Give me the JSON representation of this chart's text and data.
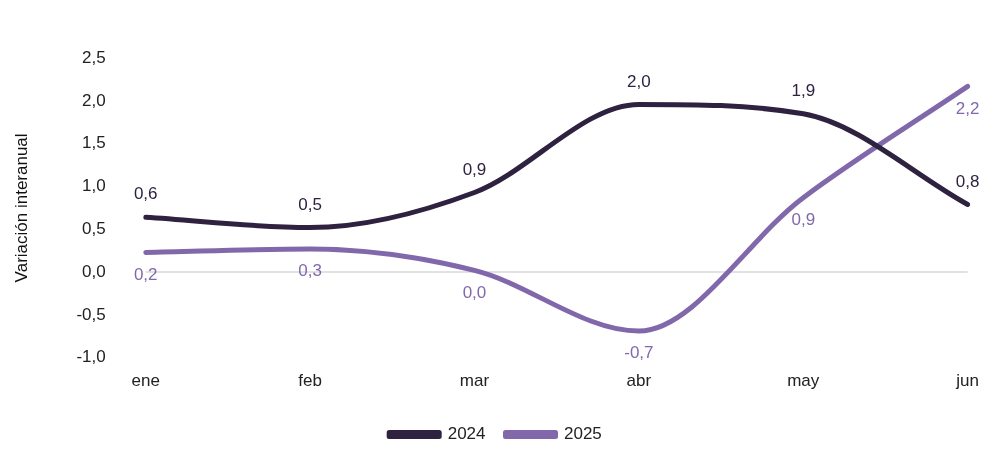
{
  "chart_data": {
    "type": "line",
    "ylabel": "Variación interanual",
    "categories": [
      "ene",
      "feb",
      "mar",
      "abr",
      "may",
      "jun"
    ],
    "series": [
      {
        "name": "2024",
        "color": "#2e2240",
        "values": [
          0.64,
          0.52,
          0.93,
          1.96,
          1.85,
          0.79
        ],
        "value_labels": [
          "0,6",
          "0,5",
          "0,9",
          "2,0",
          "1,9",
          "0,8"
        ]
      },
      {
        "name": "2025",
        "color": "#8068ab",
        "values": [
          0.23,
          0.27,
          0.02,
          -0.69,
          0.87,
          2.17
        ],
        "value_labels": [
          "0,2",
          "0,3",
          "0,0",
          "-0,7",
          "0,9",
          "2,2"
        ]
      }
    ],
    "ylim": [
      -1,
      2.5
    ],
    "yticks": [
      {
        "value": -1,
        "label": "-1,0"
      },
      {
        "value": -0.5,
        "label": "-0,5"
      },
      {
        "value": 0,
        "label": "0,0"
      },
      {
        "value": 0.5,
        "label": "0,5"
      },
      {
        "value": 1,
        "label": "1,0"
      },
      {
        "value": 1.5,
        "label": "1,5"
      },
      {
        "value": 2,
        "label": "2,0"
      },
      {
        "value": 2.5,
        "label": "2,5"
      }
    ],
    "ref_lines": [
      {
        "axis": "y",
        "value": 0,
        "color": "#d9d9d9"
      }
    ],
    "grid": false,
    "legend": "bottom",
    "marker": "none",
    "line_style": "solid"
  }
}
